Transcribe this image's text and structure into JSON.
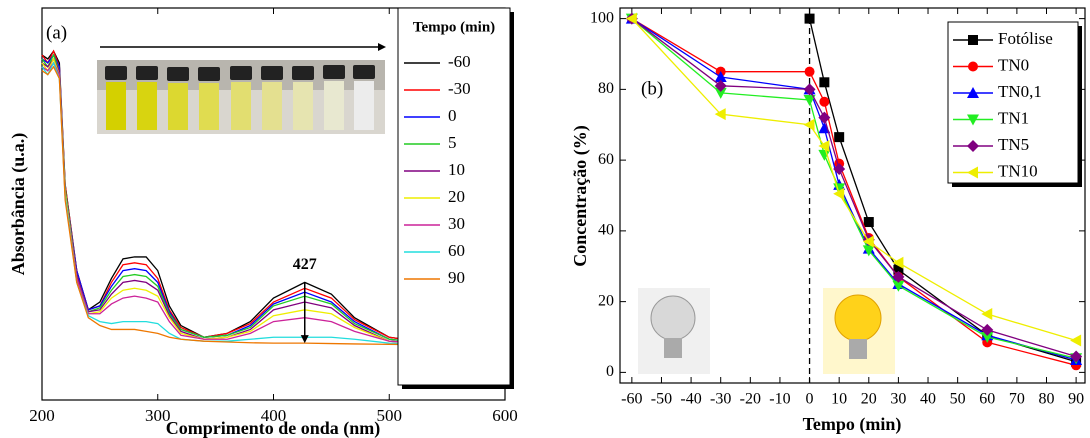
{
  "chart_data": [
    {
      "type": "line",
      "label": "(a)",
      "xlabel": "Comprimento de onda (nm)",
      "ylabel": "Absorbância (u.a.)",
      "x": [
        200,
        205,
        210,
        215,
        220,
        230,
        240,
        250,
        260,
        270,
        280,
        290,
        300,
        310,
        320,
        340,
        360,
        380,
        400,
        427,
        450,
        470,
        500,
        550,
        600
      ],
      "xlim": [
        200,
        600
      ],
      "xticks": [
        200,
        300,
        400,
        500,
        600
      ],
      "ylim": [
        0,
        1
      ],
      "legend_title": "Tempo (min)",
      "annotations": [
        {
          "text": "427",
          "x": 427
        }
      ],
      "series": [
        {
          "name": "-60",
          "color": "#000000",
          "values": [
            0.88,
            0.87,
            0.89,
            0.86,
            0.55,
            0.33,
            0.23,
            0.25,
            0.31,
            0.36,
            0.365,
            0.365,
            0.33,
            0.24,
            0.19,
            0.16,
            0.17,
            0.2,
            0.26,
            0.3,
            0.27,
            0.21,
            0.16,
            0.14,
            0.14
          ]
        },
        {
          "name": "-30",
          "color": "#ff0000",
          "values": [
            0.88,
            0.86,
            0.89,
            0.85,
            0.55,
            0.33,
            0.23,
            0.24,
            0.3,
            0.345,
            0.35,
            0.345,
            0.31,
            0.23,
            0.185,
            0.16,
            0.17,
            0.195,
            0.25,
            0.285,
            0.26,
            0.205,
            0.16,
            0.14,
            0.14
          ]
        },
        {
          "name": "0",
          "color": "#0000ff",
          "values": [
            0.87,
            0.86,
            0.88,
            0.85,
            0.54,
            0.33,
            0.23,
            0.24,
            0.29,
            0.33,
            0.335,
            0.33,
            0.3,
            0.225,
            0.18,
            0.16,
            0.165,
            0.19,
            0.245,
            0.275,
            0.25,
            0.2,
            0.155,
            0.14,
            0.14
          ]
        },
        {
          "name": "5",
          "color": "#22cc22",
          "values": [
            0.87,
            0.85,
            0.88,
            0.84,
            0.54,
            0.32,
            0.225,
            0.235,
            0.28,
            0.315,
            0.32,
            0.315,
            0.29,
            0.22,
            0.18,
            0.16,
            0.165,
            0.185,
            0.24,
            0.265,
            0.245,
            0.195,
            0.155,
            0.14,
            0.14
          ]
        },
        {
          "name": "10",
          "color": "#800080",
          "values": [
            0.86,
            0.85,
            0.87,
            0.84,
            0.53,
            0.32,
            0.225,
            0.23,
            0.27,
            0.3,
            0.305,
            0.3,
            0.28,
            0.215,
            0.175,
            0.155,
            0.16,
            0.18,
            0.23,
            0.25,
            0.235,
            0.19,
            0.15,
            0.14,
            0.14
          ]
        },
        {
          "name": "20",
          "color": "#eeee00",
          "values": [
            0.86,
            0.84,
            0.87,
            0.83,
            0.53,
            0.31,
            0.22,
            0.225,
            0.26,
            0.28,
            0.285,
            0.28,
            0.265,
            0.21,
            0.17,
            0.155,
            0.16,
            0.175,
            0.215,
            0.23,
            0.22,
            0.185,
            0.15,
            0.14,
            0.14
          ]
        },
        {
          "name": "30",
          "color": "#cc2299",
          "values": [
            0.85,
            0.84,
            0.86,
            0.83,
            0.52,
            0.31,
            0.22,
            0.22,
            0.245,
            0.26,
            0.265,
            0.26,
            0.25,
            0.2,
            0.165,
            0.155,
            0.155,
            0.17,
            0.2,
            0.21,
            0.2,
            0.175,
            0.15,
            0.14,
            0.14
          ]
        },
        {
          "name": "60",
          "color": "#22dddd",
          "values": [
            0.85,
            0.83,
            0.86,
            0.82,
            0.52,
            0.3,
            0.215,
            0.2,
            0.195,
            0.2,
            0.2,
            0.2,
            0.195,
            0.17,
            0.155,
            0.15,
            0.15,
            0.155,
            0.16,
            0.16,
            0.16,
            0.155,
            0.145,
            0.14,
            0.14
          ]
        },
        {
          "name": "90",
          "color": "#ee7700",
          "values": [
            0.84,
            0.83,
            0.85,
            0.82,
            0.51,
            0.3,
            0.21,
            0.19,
            0.18,
            0.18,
            0.18,
            0.175,
            0.17,
            0.16,
            0.155,
            0.15,
            0.148,
            0.146,
            0.145,
            0.145,
            0.144,
            0.143,
            0.142,
            0.14,
            0.14
          ]
        }
      ]
    },
    {
      "type": "line",
      "label": "(b)",
      "xlabel": "Tempo (min)",
      "ylabel": "Concentração (%)",
      "xlim": [
        -64,
        93
      ],
      "xticks": [
        -60,
        -50,
        -40,
        -30,
        -20,
        -10,
        0,
        10,
        20,
        30,
        40,
        50,
        60,
        70,
        80,
        90
      ],
      "ylim": [
        -3,
        103
      ],
      "yticks": [
        0,
        20,
        40,
        60,
        80,
        100
      ],
      "vline": 0,
      "markers": true,
      "series": [
        {
          "name": "Fotólise",
          "color": "#000000",
          "marker": "square",
          "x": [
            0,
            5,
            10,
            20,
            30,
            60,
            90
          ],
          "values": [
            100,
            82,
            66.5,
            42.5,
            29,
            10.5,
            3
          ]
        },
        {
          "name": "TN0",
          "color": "#ff0000",
          "marker": "circle",
          "x": [
            -60,
            -30,
            0,
            5,
            10,
            20,
            30,
            60,
            90
          ],
          "values": [
            100,
            85,
            85,
            76.5,
            59,
            38,
            27,
            8.5,
            2
          ]
        },
        {
          "name": "TN0,1",
          "color": "#0000ff",
          "marker": "triangle-up",
          "x": [
            -60,
            -30,
            0,
            5,
            10,
            20,
            30,
            60,
            90
          ],
          "values": [
            100,
            83.5,
            80,
            69,
            53,
            35,
            25,
            10.5,
            3.5
          ]
        },
        {
          "name": "TN1",
          "color": "#22ee22",
          "marker": "triangle-down",
          "x": [
            -60,
            -30,
            0,
            5,
            10,
            20,
            30,
            60,
            90
          ],
          "values": [
            100,
            79,
            77,
            61.5,
            52,
            34.5,
            24.5,
            10,
            4
          ]
        },
        {
          "name": "TN5",
          "color": "#800080",
          "marker": "diamond",
          "x": [
            -60,
            -30,
            0,
            5,
            10,
            20,
            30,
            60,
            90
          ],
          "values": [
            100,
            81,
            80,
            72,
            57.5,
            37.5,
            27,
            12,
            4.5
          ]
        },
        {
          "name": "TN10",
          "color": "#eeee00",
          "marker": "triangle-left",
          "x": [
            -60,
            -30,
            0,
            5,
            10,
            20,
            30,
            60,
            90
          ],
          "values": [
            100,
            73,
            70,
            64,
            50.5,
            37,
            31,
            16.5,
            9
          ]
        }
      ]
    }
  ]
}
